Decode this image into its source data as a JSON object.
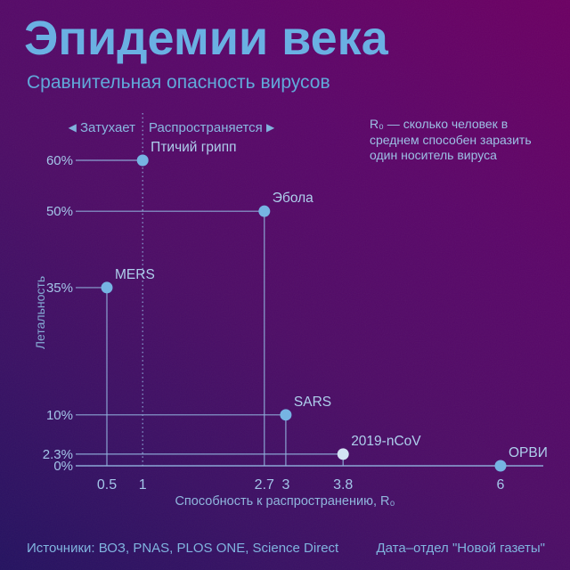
{
  "header": {
    "title": "Эпидемии века",
    "subtitle": "Сравнительная опасность вирусов"
  },
  "annotations": {
    "fade": {
      "arrow": "◀",
      "label": "Затухает"
    },
    "spread": {
      "label": "Распространяется",
      "arrow": "▶"
    },
    "r0_note": "R₀ — сколько человек в\nсреднем способен заразить\nодин носитель вируса"
  },
  "footer": {
    "sources": "Источники: ВОЗ, PNAS, PLOS ONE, Science Direct",
    "credit": "Дата–отдел \"Новой газеты\""
  },
  "colors": {
    "point": "#74b4e4",
    "point_highlight": "#d3e6f6",
    "line": "#8fb0dd",
    "tick_text": "#a3c6ea",
    "point_label_text": "#aed0ee",
    "accent_text": "#68b0e4"
  },
  "chart_data": {
    "type": "scatter",
    "title": "Эпидемии века",
    "subtitle": "Сравнительная опасность вирусов",
    "xlabel": "Способность к распространению, R₀",
    "ylabel": "Летальность",
    "xlim": [
      0.5,
      6
    ],
    "ylim": [
      0,
      60
    ],
    "grid": false,
    "threshold_x": 1,
    "x_ticks": [
      "0.5",
      "1",
      "2.7",
      "3",
      "3.8",
      "6"
    ],
    "y_ticks": [
      "60%",
      "50%",
      "35%",
      "10%",
      "2.3%",
      "0%"
    ],
    "points": [
      {
        "name": "Птичий грипп",
        "r0": 1,
        "r0_label": "1",
        "lethality": 60,
        "lethality_label": "60%",
        "on_dotted_threshold": true
      },
      {
        "name": "Эбола",
        "r0": 2.7,
        "r0_label": "2.7",
        "lethality": 50,
        "lethality_label": "50%"
      },
      {
        "name": "MERS",
        "r0": 0.5,
        "r0_label": "0.5",
        "lethality": 35,
        "lethality_label": "35%"
      },
      {
        "name": "SARS",
        "r0": 3,
        "r0_label": "3",
        "lethality": 10,
        "lethality_label": "10%"
      },
      {
        "name": "2019-nCoV",
        "r0": 3.8,
        "r0_label": "3.8",
        "lethality": 2.3,
        "lethality_label": "2.3%",
        "highlight": true
      },
      {
        "name": "ОРВИ",
        "r0": 6,
        "r0_label": "6",
        "lethality": 0,
        "lethality_label": "0%"
      }
    ]
  }
}
